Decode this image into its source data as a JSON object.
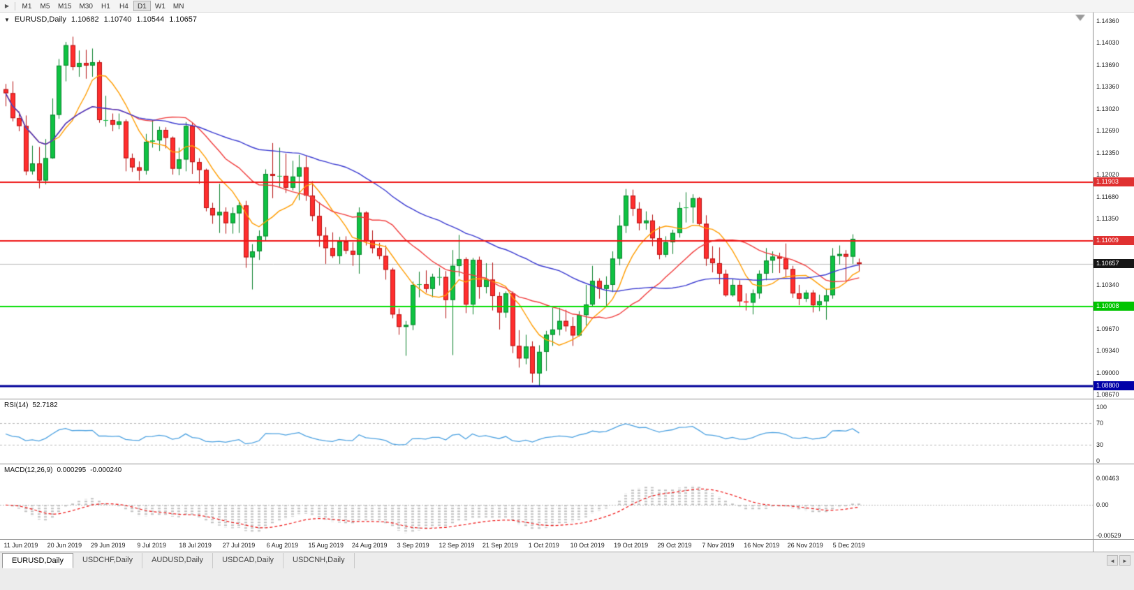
{
  "toolbar": {
    "menu_icon": "▶",
    "timeframes": [
      "M1",
      "M5",
      "M15",
      "M30",
      "H1",
      "H4",
      "D1",
      "W1",
      "MN"
    ],
    "active": "D1"
  },
  "chart_header": {
    "collapse_icon": "▼",
    "symbol": "EURUSD,Daily",
    "open": "1.10682",
    "high": "1.10740",
    "low": "1.10544",
    "close": "1.10657"
  },
  "chart_data": {
    "type": "candlestick",
    "symbol": "EURUSD",
    "timeframe": "Daily",
    "y_axis": {
      "top_price": 1.1436,
      "bottom_price": 1.0867,
      "labels": [
        "1.14360",
        "1.14030",
        "1.13690",
        "1.13360",
        "1.13020",
        "1.12690",
        "1.12350",
        "1.12020",
        "1.11680",
        "1.11350",
        "1.10340",
        "1.09670",
        "1.09340",
        "1.09000",
        "1.08670"
      ]
    },
    "x_axis": {
      "dates": [
        "11 Jun 2019",
        "20 Jun 2019",
        "29 Jun 2019",
        "9 Jul 2019",
        "18 Jul 2019",
        "27 Jul 2019",
        "6 Aug 2019",
        "15 Aug 2019",
        "24 Aug 2019",
        "3 Sep 2019",
        "12 Sep 2019",
        "21 Sep 2019",
        "1 Oct 2019",
        "10 Oct 2019",
        "19 Oct 2019",
        "29 Oct 2019",
        "7 Nov 2019",
        "16 Nov 2019",
        "26 Nov 2019",
        "5 Dec 2019"
      ]
    },
    "hlines": [
      {
        "price": 1.11903,
        "label": "1.11903",
        "color": "#ee1515",
        "badge_bg": "#e03030",
        "width": 2
      },
      {
        "price": 1.11009,
        "label": "1.11009",
        "color": "#ee1515",
        "badge_bg": "#e03030",
        "width": 2
      },
      {
        "price": 1.10008,
        "label": "1.10008",
        "color": "#00dd00",
        "badge_bg": "#00c400",
        "width": 2
      },
      {
        "price": 1.088,
        "label": "1.08800",
        "color": "#000099",
        "badge_bg": "#0000a8",
        "width": 3
      }
    ],
    "price_marker": {
      "price": 1.10657,
      "label": "1.10657",
      "bg": "#161616",
      "line_color": "#bcbcbc"
    },
    "moving_averages": [
      {
        "period": 8,
        "color": "#ff9c00"
      },
      {
        "period": 20,
        "color": "#f03c3c"
      },
      {
        "period": 45,
        "color": "#3a3ad0"
      }
    ],
    "colors": {
      "bull": "#0fc242",
      "bull_border": "#0a812c",
      "bear": "#ff2e2e",
      "bear_border": "#b51111"
    },
    "candles": [
      [
        1.1332,
        1.134,
        1.1306,
        1.1326
      ],
      [
        1.1326,
        1.1344,
        1.1283,
        1.1288
      ],
      [
        1.1288,
        1.1298,
        1.1268,
        1.1276
      ],
      [
        1.1276,
        1.1292,
        1.1201,
        1.1207
      ],
      [
        1.1207,
        1.1246,
        1.1202,
        1.1219
      ],
      [
        1.1219,
        1.1244,
        1.1181,
        1.1193
      ],
      [
        1.1193,
        1.1256,
        1.1187,
        1.1227
      ],
      [
        1.1227,
        1.1318,
        1.1226,
        1.1293
      ],
      [
        1.1293,
        1.1378,
        1.1287,
        1.1368
      ],
      [
        1.1368,
        1.1404,
        1.1344,
        1.1399
      ],
      [
        1.1399,
        1.1412,
        1.1361,
        1.1366
      ],
      [
        1.1366,
        1.1391,
        1.1351,
        1.1372
      ],
      [
        1.1372,
        1.1392,
        1.1348,
        1.1368
      ],
      [
        1.1368,
        1.1394,
        1.1351,
        1.1373
      ],
      [
        1.1373,
        1.1376,
        1.1281,
        1.1285
      ],
      [
        1.1285,
        1.1322,
        1.1275,
        1.1285
      ],
      [
        1.1285,
        1.1295,
        1.1268,
        1.1278
      ],
      [
        1.1278,
        1.1295,
        1.1271,
        1.1283
      ],
      [
        1.1283,
        1.1286,
        1.1207,
        1.1227
      ],
      [
        1.1227,
        1.1234,
        1.1206,
        1.1213
      ],
      [
        1.1213,
        1.1222,
        1.1193,
        1.1208
      ],
      [
        1.1208,
        1.1264,
        1.1202,
        1.1252
      ],
      [
        1.1252,
        1.1285,
        1.1243,
        1.1254
      ],
      [
        1.1254,
        1.1275,
        1.1238,
        1.127
      ],
      [
        1.127,
        1.1274,
        1.1242,
        1.1258
      ],
      [
        1.1258,
        1.126,
        1.1202,
        1.1211
      ],
      [
        1.1211,
        1.1243,
        1.1201,
        1.1225
      ],
      [
        1.1225,
        1.1282,
        1.1207,
        1.1276
      ],
      [
        1.1276,
        1.1281,
        1.1203,
        1.1221
      ],
      [
        1.1221,
        1.1227,
        1.1188,
        1.1209
      ],
      [
        1.1209,
        1.1211,
        1.1146,
        1.1151
      ],
      [
        1.1151,
        1.1159,
        1.1127,
        1.114
      ],
      [
        1.114,
        1.1188,
        1.1113,
        1.1145
      ],
      [
        1.1145,
        1.1152,
        1.1112,
        1.1128
      ],
      [
        1.1128,
        1.1152,
        1.1112,
        1.1143
      ],
      [
        1.1143,
        1.1162,
        1.1113,
        1.1155
      ],
      [
        1.1155,
        1.1162,
        1.106,
        1.1076
      ],
      [
        1.1076,
        1.1096,
        1.1027,
        1.1085
      ],
      [
        1.1085,
        1.1117,
        1.1072,
        1.1108
      ],
      [
        1.1108,
        1.121,
        1.1101,
        1.1203
      ],
      [
        1.1203,
        1.125,
        1.1166,
        1.12
      ],
      [
        1.12,
        1.1243,
        1.1183,
        1.12
      ],
      [
        1.12,
        1.1234,
        1.1174,
        1.1182
      ],
      [
        1.1182,
        1.1223,
        1.1178,
        1.1199
      ],
      [
        1.1199,
        1.1232,
        1.1163,
        1.1213
      ],
      [
        1.1213,
        1.123,
        1.1162,
        1.117
      ],
      [
        1.117,
        1.1192,
        1.1131,
        1.1139
      ],
      [
        1.1139,
        1.116,
        1.1092,
        1.1109
      ],
      [
        1.1109,
        1.1122,
        1.1066,
        1.109
      ],
      [
        1.109,
        1.1114,
        1.1075,
        1.1078
      ],
      [
        1.1078,
        1.1107,
        1.1066,
        1.11
      ],
      [
        1.11,
        1.1108,
        1.1081,
        1.1086
      ],
      [
        1.1086,
        1.1099,
        1.1063,
        1.108
      ],
      [
        1.108,
        1.1152,
        1.1051,
        1.1144
      ],
      [
        1.1144,
        1.1146,
        1.1094,
        1.1101
      ],
      [
        1.1101,
        1.1117,
        1.1082,
        1.109
      ],
      [
        1.109,
        1.1098,
        1.1073,
        1.1078
      ],
      [
        1.1078,
        1.1094,
        1.1042,
        1.1057
      ],
      [
        1.1057,
        1.106,
        1.0983,
        1.0989
      ],
      [
        1.0989,
        1.0998,
        1.0958,
        1.097
      ],
      [
        1.097,
        1.0979,
        1.0926,
        1.0973
      ],
      [
        1.0973,
        1.1039,
        1.0965,
        1.1034
      ],
      [
        1.1034,
        1.1054,
        1.1015,
        1.1035
      ],
      [
        1.1035,
        1.1056,
        1.1022,
        1.1028
      ],
      [
        1.1028,
        1.1051,
        1.1015,
        1.1046
      ],
      [
        1.1046,
        1.106,
        1.1033,
        1.1046
      ],
      [
        1.1046,
        1.1055,
        1.0983,
        1.1011
      ],
      [
        1.1011,
        1.1087,
        1.0927,
        1.1063
      ],
      [
        1.1063,
        1.111,
        1.1047,
        1.1073
      ],
      [
        1.1073,
        1.1076,
        1.0991,
        1.1004
      ],
      [
        1.1004,
        1.1075,
        1.0989,
        1.1072
      ],
      [
        1.1072,
        1.1077,
        1.1013,
        1.1031
      ],
      [
        1.1031,
        1.1067,
        1.1021,
        1.1042
      ],
      [
        1.1042,
        1.1068,
        1.0995,
        1.1017
      ],
      [
        1.1017,
        1.1023,
        1.0966,
        1.0992
      ],
      [
        1.0992,
        1.1024,
        1.0984,
        1.1021
      ],
      [
        1.1021,
        1.1024,
        1.093,
        1.0941
      ],
      [
        1.0941,
        1.0965,
        1.0908,
        1.0922
      ],
      [
        1.0922,
        1.0958,
        1.0913,
        1.094
      ],
      [
        1.094,
        1.0948,
        1.0885,
        1.0899
      ],
      [
        1.0899,
        1.0942,
        1.0879,
        1.0932
      ],
      [
        1.0932,
        1.0964,
        1.0903,
        1.0958
      ],
      [
        1.0958,
        1.0999,
        1.0941,
        1.0966
      ],
      [
        1.0966,
        1.0999,
        1.0957,
        1.0979
      ],
      [
        1.0979,
        1.0996,
        1.0963,
        1.0971
      ],
      [
        1.0971,
        1.0985,
        1.0941,
        1.0957
      ],
      [
        1.0957,
        1.0994,
        1.0955,
        1.0988
      ],
      [
        1.0988,
        1.1034,
        1.0972,
        1.1004
      ],
      [
        1.1004,
        1.1063,
        1.1002,
        1.104
      ],
      [
        1.104,
        1.1044,
        1.1013,
        1.1028
      ],
      [
        1.1028,
        1.1047,
        1.1001,
        1.1034
      ],
      [
        1.1034,
        1.1085,
        1.1023,
        1.1074
      ],
      [
        1.1074,
        1.114,
        1.1064,
        1.1124
      ],
      [
        1.1124,
        1.118,
        1.1113,
        1.117
      ],
      [
        1.117,
        1.1179,
        1.1139,
        1.115
      ],
      [
        1.115,
        1.116,
        1.1117,
        1.1128
      ],
      [
        1.1128,
        1.1146,
        1.1118,
        1.1132
      ],
      [
        1.1132,
        1.1141,
        1.1093,
        1.1105
      ],
      [
        1.1105,
        1.1123,
        1.1073,
        1.108
      ],
      [
        1.108,
        1.1108,
        1.1076,
        1.1099
      ],
      [
        1.1099,
        1.1118,
        1.1081,
        1.1113
      ],
      [
        1.1113,
        1.116,
        1.1106,
        1.1151
      ],
      [
        1.1151,
        1.1175,
        1.1129,
        1.1152
      ],
      [
        1.1152,
        1.1172,
        1.1128,
        1.1166
      ],
      [
        1.1166,
        1.1168,
        1.1124,
        1.1127
      ],
      [
        1.1127,
        1.114,
        1.1063,
        1.1074
      ],
      [
        1.1074,
        1.1093,
        1.1053,
        1.1067
      ],
      [
        1.1067,
        1.1091,
        1.1035,
        1.1051
      ],
      [
        1.1051,
        1.1057,
        1.1016,
        1.1018
      ],
      [
        1.1018,
        1.1043,
        1.1016,
        1.1034
      ],
      [
        1.1034,
        1.1041,
        1.1002,
        1.1009
      ],
      [
        1.1009,
        1.1021,
        1.0995,
        1.1007
      ],
      [
        1.1007,
        1.1027,
        1.0989,
        1.1021
      ],
      [
        1.1021,
        1.1056,
        1.1013,
        1.1051
      ],
      [
        1.1051,
        1.109,
        1.1041,
        1.1071
      ],
      [
        1.1071,
        1.1085,
        1.1052,
        1.1077
      ],
      [
        1.1077,
        1.1083,
        1.1052,
        1.1074
      ],
      [
        1.1074,
        1.1097,
        1.1046,
        1.1058
      ],
      [
        1.1058,
        1.1063,
        1.1014,
        1.1021
      ],
      [
        1.1021,
        1.1034,
        1.1003,
        1.1013
      ],
      [
        1.1013,
        1.1026,
        1.1008,
        1.1022
      ],
      [
        1.1022,
        1.1026,
        1.0992,
        1.1003
      ],
      [
        1.1003,
        1.1019,
        1.0994,
        1.1009
      ],
      [
        1.1009,
        1.1028,
        1.0981,
        1.1018
      ],
      [
        1.1018,
        1.109,
        1.1013,
        1.1078
      ],
      [
        1.1078,
        1.1094,
        1.1065,
        1.1081
      ],
      [
        1.1081,
        1.1087,
        1.1039,
        1.1077
      ],
      [
        1.1077,
        1.1111,
        1.1066,
        1.1104
      ],
      [
        1.10682,
        1.1074,
        1.10544,
        1.10657
      ]
    ],
    "rsi": {
      "label": "RSI(14)",
      "value": "52.7182",
      "period": 14,
      "levels": [
        70,
        30
      ],
      "axis_labels": [
        "100",
        "70",
        "30",
        "0"
      ],
      "axis_values": [
        100,
        70,
        30,
        0
      ],
      "line_color": "#4aa0e0"
    },
    "macd": {
      "label": "MACD(12,26,9)",
      "value_main": "0.000295",
      "value_signal": "-0.000240",
      "fast": 12,
      "slow": 26,
      "signal": 9,
      "axis_labels": [
        "0.00463",
        "0.00",
        "-0.00529"
      ],
      "axis_values": [
        0.00463,
        0,
        -0.00529
      ],
      "ylim": [
        -0.00529,
        0.00463
      ],
      "hist_color": "#c0c0c0",
      "signal_color": "#ee1111"
    }
  },
  "tabs": {
    "left_arrow": "◄",
    "right_arrow": "►",
    "items": [
      {
        "label": "EURUSD,Daily",
        "active": true
      },
      {
        "label": "USDCHF,Daily",
        "active": false
      },
      {
        "label": "AUDUSD,Daily",
        "active": false
      },
      {
        "label": "USDCAD,Daily",
        "active": false
      },
      {
        "label": "USDCNH,Daily",
        "active": false
      }
    ]
  }
}
